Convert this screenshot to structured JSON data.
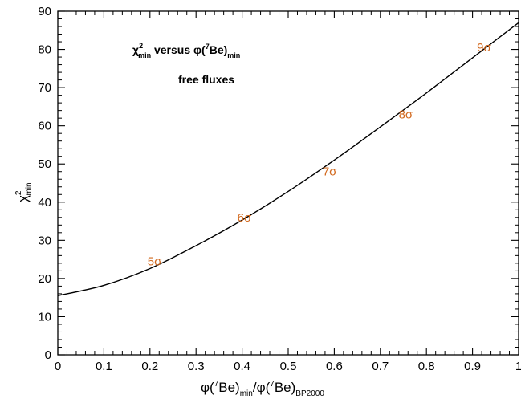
{
  "chart_data": {
    "type": "line",
    "x": [
      0.0,
      0.1,
      0.2,
      0.3,
      0.4,
      0.5,
      0.6,
      0.7,
      0.8,
      0.9,
      1.0
    ],
    "series": [
      {
        "values": [
          15.5,
          18.2,
          22.6,
          28.6,
          35.3,
          42.8,
          51.0,
          59.7,
          68.6,
          77.8,
          87.0
        ]
      }
    ],
    "xlim": [
      0,
      1
    ],
    "ylim": [
      0,
      90
    ],
    "x_ticks": [
      "0",
      "0.1",
      "0.2",
      "0.3",
      "0.4",
      "0.5",
      "0.6",
      "0.7",
      "0.8",
      "0.9",
      "1"
    ],
    "y_ticks": [
      "0",
      "10",
      "20",
      "30",
      "40",
      "50",
      "60",
      "70",
      "80",
      "90"
    ],
    "xlabel": {
      "phi1": "φ(",
      "sup1": "7",
      "be1": "Be)",
      "sub1": "min",
      "slash": "/φ(",
      "sup2": "7",
      "be2": "Be)",
      "sub2": "BP2000"
    },
    "ylabel": {
      "chi": "χ",
      "sup": "2",
      "sub": "min"
    },
    "annotation": {
      "chi": "χ",
      "sup": "2",
      "sub": "min",
      "versus": " versus φ(",
      "sup7": "7",
      "be": "Be)",
      "sub2": "min",
      "line2": "free fluxes"
    },
    "sigma_labels": [
      {
        "text": "5σ",
        "x": 0.21,
        "y": 24.5
      },
      {
        "text": "6σ",
        "x": 0.405,
        "y": 36
      },
      {
        "text": "7σ",
        "x": 0.59,
        "y": 48
      },
      {
        "text": "8σ",
        "x": 0.755,
        "y": 63
      },
      {
        "text": "9σ",
        "x": 0.925,
        "y": 80.5
      }
    ],
    "grid": false,
    "colors": {
      "curve": "#000000",
      "sigma": "#d2691e"
    }
  }
}
